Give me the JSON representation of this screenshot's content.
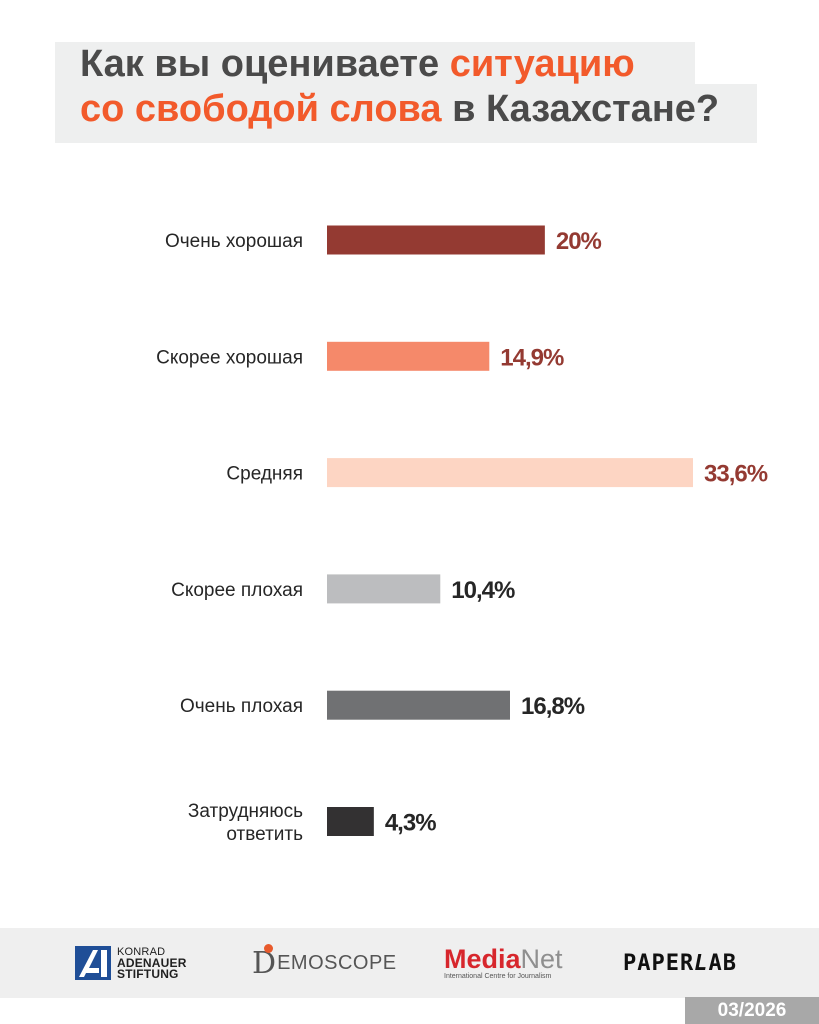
{
  "title": {
    "line1_pre": "Как вы оцениваете ",
    "line1_accent": "ситуацию",
    "line2_accent": "со свободой слова",
    "line2_post": " в Казахстане?"
  },
  "chart_data": {
    "type": "bar",
    "orientation": "horizontal",
    "categories": [
      "Очень хорошая",
      "Скорее хорошая",
      "Средняя",
      "Скорее плохая",
      "Очень плохая",
      "Затрудняюсь ответить"
    ],
    "category_lines": [
      [
        "Очень хорошая"
      ],
      [
        "Скорее хорошая"
      ],
      [
        "Средняя"
      ],
      [
        "Скорее плохая"
      ],
      [
        "Очень плохая"
      ],
      [
        "Затрудняюсь",
        "ответить"
      ]
    ],
    "values": [
      20,
      14.9,
      33.6,
      10.4,
      16.8,
      4.3
    ],
    "value_labels": [
      "20%",
      "14,9%",
      "33,6%",
      "10,4%",
      "16,8%",
      "4,3%"
    ],
    "bar_colors": [
      "#943a32",
      "#f5896a",
      "#fdd5c3",
      "#bcbdbf",
      "#707173",
      "#333132"
    ],
    "label_colors": [
      "#943a32",
      "#943a32",
      "#943a32",
      "#262626",
      "#262626",
      "#262626"
    ],
    "xlim": [
      0,
      33.6
    ],
    "grid": false,
    "title": "Как вы оцениваете ситуацию со свободой слова в Казахстане?"
  },
  "footer": {
    "kas": [
      "KONRAD",
      "ADENAUER",
      "STIFTUNG"
    ],
    "demoscope": {
      "initial": "D",
      "rest": "EMOSCOPE"
    },
    "medianet": {
      "media": "Media",
      "net": "Net",
      "sub": "International Centre for Journalism"
    },
    "paperlab": {
      "paper": "PAPER",
      "l": "L",
      "ab": "AB"
    },
    "date": "03/2026"
  }
}
